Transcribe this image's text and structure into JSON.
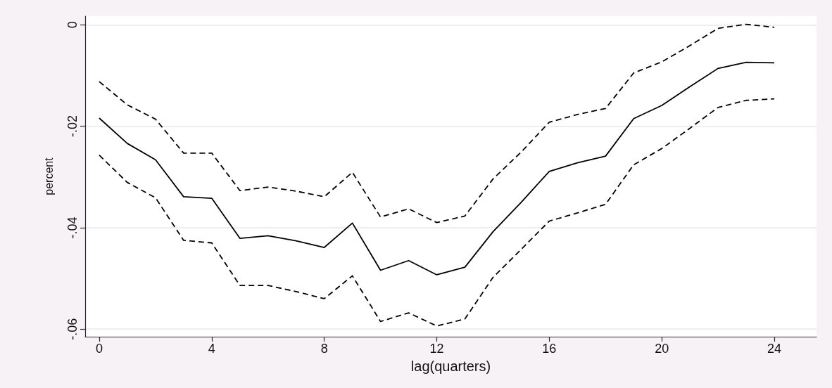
{
  "chart_data": {
    "type": "line",
    "xlabel": "lag(quarters)",
    "ylabel": "percent",
    "x": [
      0,
      1,
      2,
      3,
      4,
      5,
      6,
      7,
      8,
      9,
      10,
      11,
      12,
      13,
      14,
      15,
      16,
      17,
      18,
      19,
      20,
      21,
      22,
      23,
      24
    ],
    "series": [
      {
        "color": "#000000",
        "line_style": "solid",
        "values": [
          -0.0184,
          -0.0234,
          -0.0266,
          -0.0339,
          -0.0342,
          -0.0421,
          -0.0416,
          -0.0426,
          -0.0439,
          -0.0391,
          -0.0484,
          -0.0465,
          -0.0493,
          -0.0478,
          -0.0408,
          -0.035,
          -0.0289,
          -0.0272,
          -0.0259,
          -0.0185,
          -0.0159,
          -0.0122,
          -0.0086,
          -0.0074,
          -0.0075
        ]
      },
      {
        "color": "#000000",
        "line_style": "dashed",
        "values": [
          -0.0112,
          -0.0158,
          -0.0186,
          -0.0253,
          -0.0253,
          -0.0327,
          -0.032,
          -0.0328,
          -0.0339,
          -0.0291,
          -0.0379,
          -0.0363,
          -0.039,
          -0.0377,
          -0.0304,
          -0.0251,
          -0.0192,
          -0.0177,
          -0.0165,
          -0.0095,
          -0.0073,
          -0.0041,
          -0.0007,
          0.0001,
          -0.0005
        ]
      },
      {
        "color": "#000000",
        "line_style": "dashed",
        "values": [
          -0.0257,
          -0.0311,
          -0.0341,
          -0.0425,
          -0.043,
          -0.0514,
          -0.0514,
          -0.0526,
          -0.054,
          -0.0495,
          -0.0585,
          -0.0568,
          -0.0594,
          -0.058,
          -0.0498,
          -0.0443,
          -0.0387,
          -0.0371,
          -0.0354,
          -0.0276,
          -0.0244,
          -0.0204,
          -0.0163,
          -0.0149,
          -0.0146
        ]
      }
    ],
    "xlim": [
      -0.5,
      25.5
    ],
    "xticks": [
      0,
      4,
      8,
      12,
      16,
      20,
      24
    ],
    "ylim": [
      -0.0615,
      0.0017
    ],
    "yticks": [
      {
        "value": -0.06,
        "label": "-.06"
      },
      {
        "value": -0.04,
        "label": "-.04"
      },
      {
        "value": -0.02,
        "label": "-.02"
      },
      0
    ],
    "grid": "y",
    "marker": "none"
  }
}
